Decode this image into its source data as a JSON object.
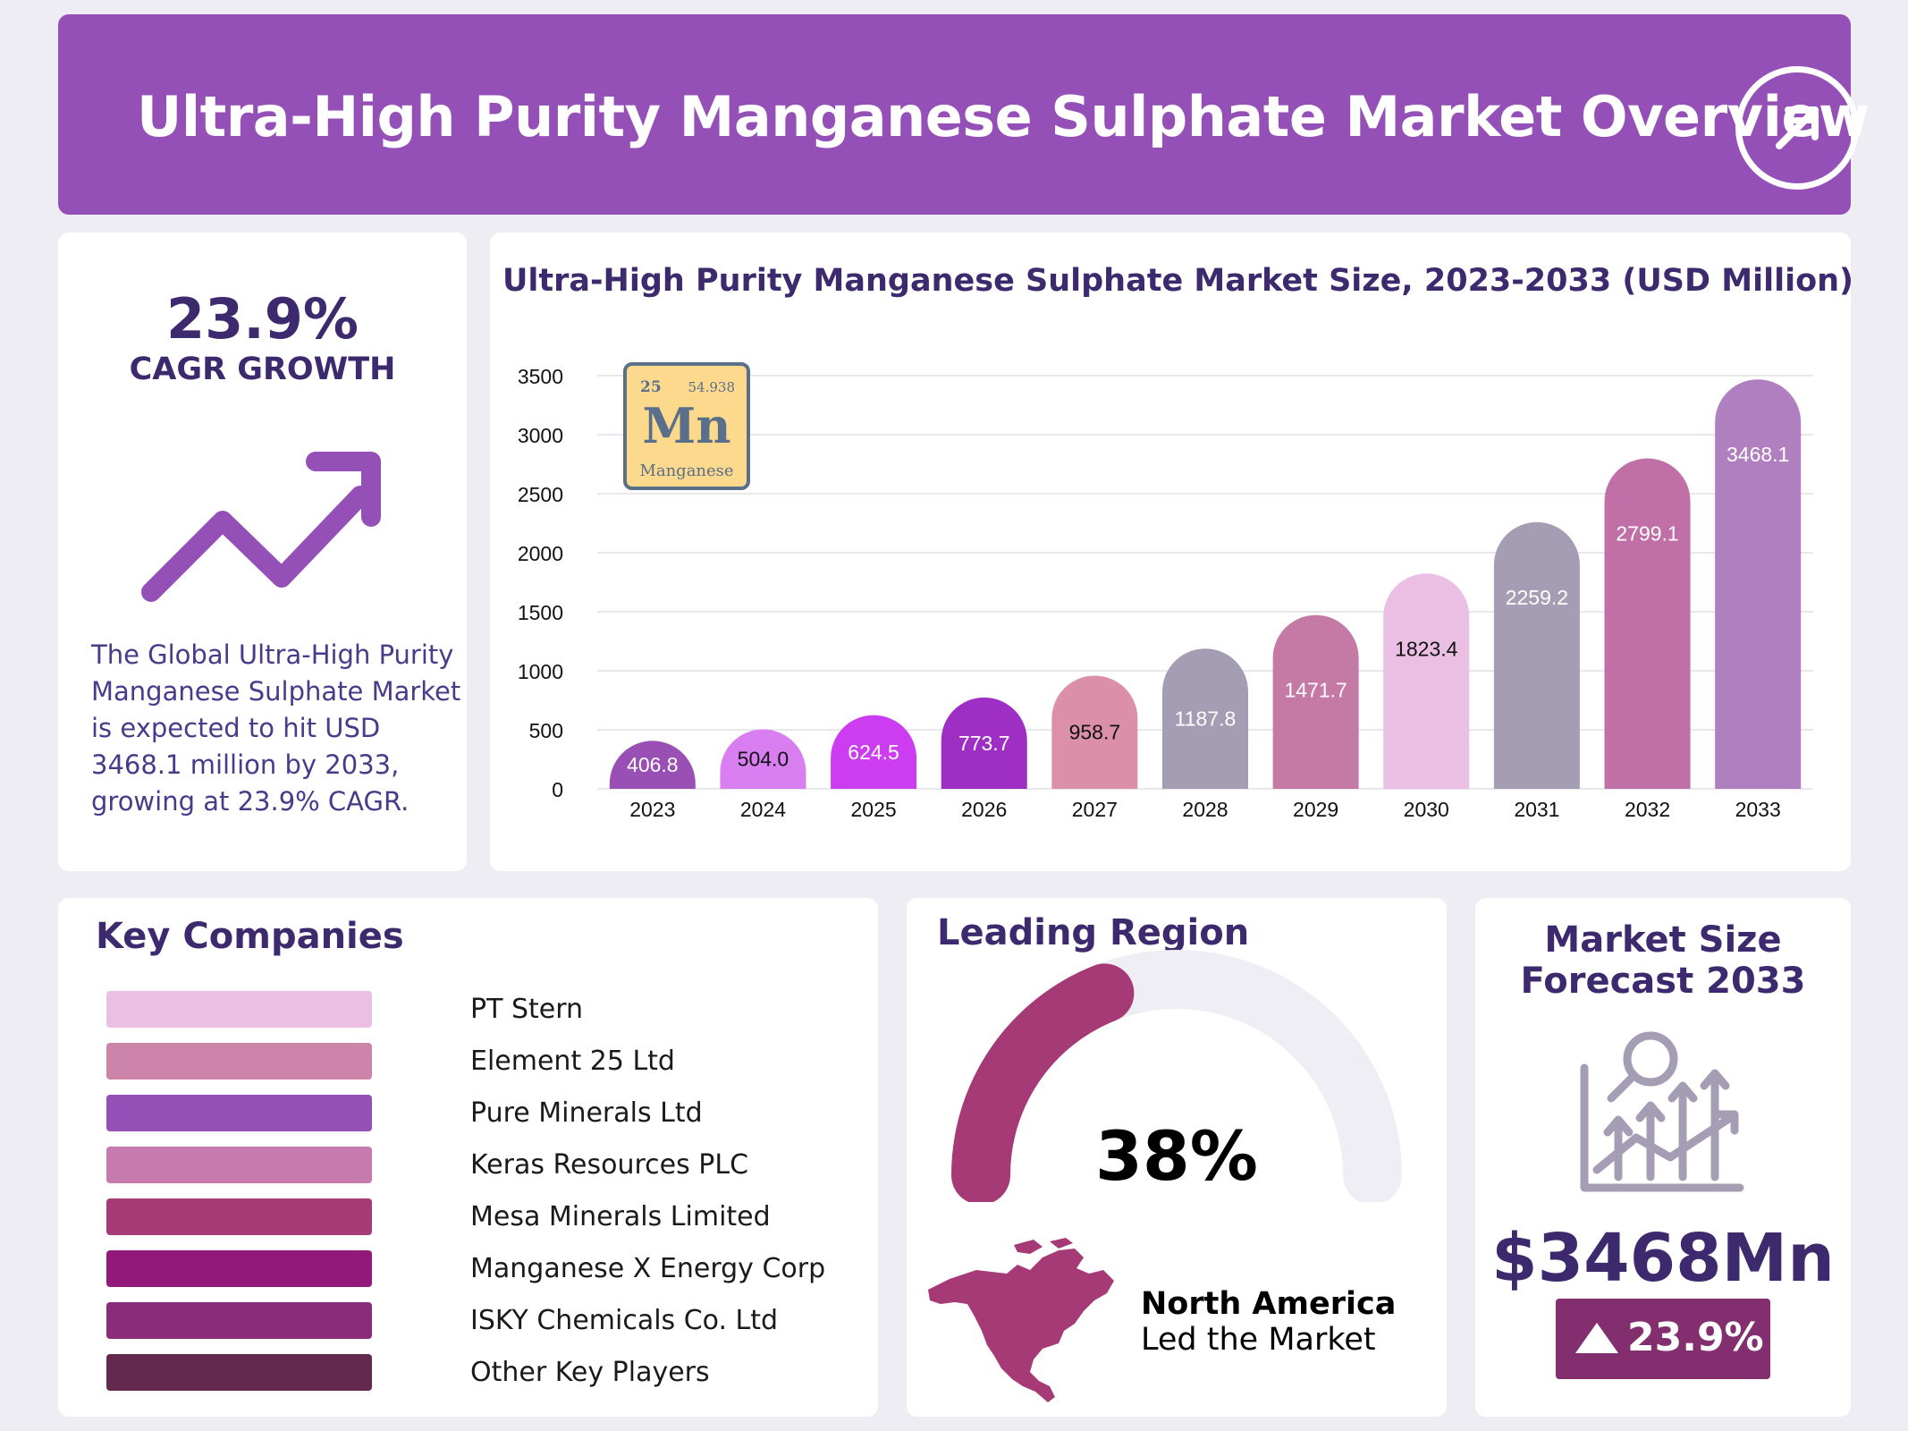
{
  "header": {
    "title": "Ultra-High Purity Manganese Sulphate Market Overview",
    "icon": "arrow-up-right-icon"
  },
  "cagr": {
    "value": "23.9%",
    "label": "CAGR GROWTH",
    "icon": "trend-up-arrow-icon",
    "description": "The Global Ultra-High Purity Manganese Sulphate Market is expected to hit USD 3468.1 million by 2033, growing at 23.9% CAGR."
  },
  "element_tile": {
    "number": "25",
    "mass": "54.938",
    "symbol": "Mn",
    "name": "Manganese"
  },
  "chart_data": {
    "type": "bar",
    "title": "Ultra-High Purity Manganese Sulphate Market Size, 2023-2033 (USD Million)",
    "categories": [
      "2023",
      "2024",
      "2025",
      "2026",
      "2027",
      "2028",
      "2029",
      "2030",
      "2031",
      "2032",
      "2033"
    ],
    "values": [
      406.8,
      504.0,
      624.5,
      773.7,
      958.7,
      1187.8,
      1471.7,
      1823.4,
      2259.2,
      2799.1,
      3468.1
    ],
    "value_labels": [
      "406.8",
      "504.0",
      "624.5",
      "773.7",
      "958.7",
      "1187.8",
      "1471.7",
      "1823.4",
      "2259.2",
      "2799.1",
      "3468.1"
    ],
    "ylim": [
      0,
      3500
    ],
    "yticks": [
      0,
      500,
      1000,
      1500,
      2000,
      2500,
      3000,
      3500
    ],
    "colors": [
      "#9a4fb5",
      "#d97ef0",
      "#cc3df2",
      "#9f2fc4",
      "#db8fa8",
      "#a59db3",
      "#c57aa6",
      "#ebbfe3",
      "#a59db3",
      "#c16fa7",
      "#b07fc0"
    ],
    "label_colors": [
      "#ffffff",
      "#111111",
      "#ffffff",
      "#ffffff",
      "#111111",
      "#ffffff",
      "#ffffff",
      "#111111",
      "#ffffff",
      "#ffffff",
      "#ffffff"
    ],
    "grid": true,
    "legend": "none"
  },
  "companies": {
    "title": "Key Companies",
    "items": [
      {
        "name": "PT Stern",
        "color": "#ebbfe3"
      },
      {
        "name": "Element 25 Ltd",
        "color": "#cc84ab"
      },
      {
        "name": "Pure Minerals Ltd",
        "color": "#9550b8"
      },
      {
        "name": "Keras Resources PLC",
        "color": "#c67aae"
      },
      {
        "name": "Mesa Minerals Limited",
        "color": "#a63a77"
      },
      {
        "name": "Manganese X Energy Corp",
        "color": "#92197a"
      },
      {
        "name": "ISKY Chemicals Co. Ltd",
        "color": "#8a2c78"
      },
      {
        "name": "Other Key Players",
        "color": "#63294f"
      }
    ]
  },
  "region": {
    "title": "Leading Region",
    "share": 38,
    "share_label": "38%",
    "name": "North America",
    "subtitle": "Led the Market",
    "map_icon": "north-america-map-icon",
    "gauge_color": "#a63a77",
    "track_color": "#efeef5"
  },
  "forecast": {
    "title": "Market Size Forecast 2033",
    "icon": "growth-analysis-icon",
    "value": "$3468Mn",
    "badge": "23.9%"
  }
}
